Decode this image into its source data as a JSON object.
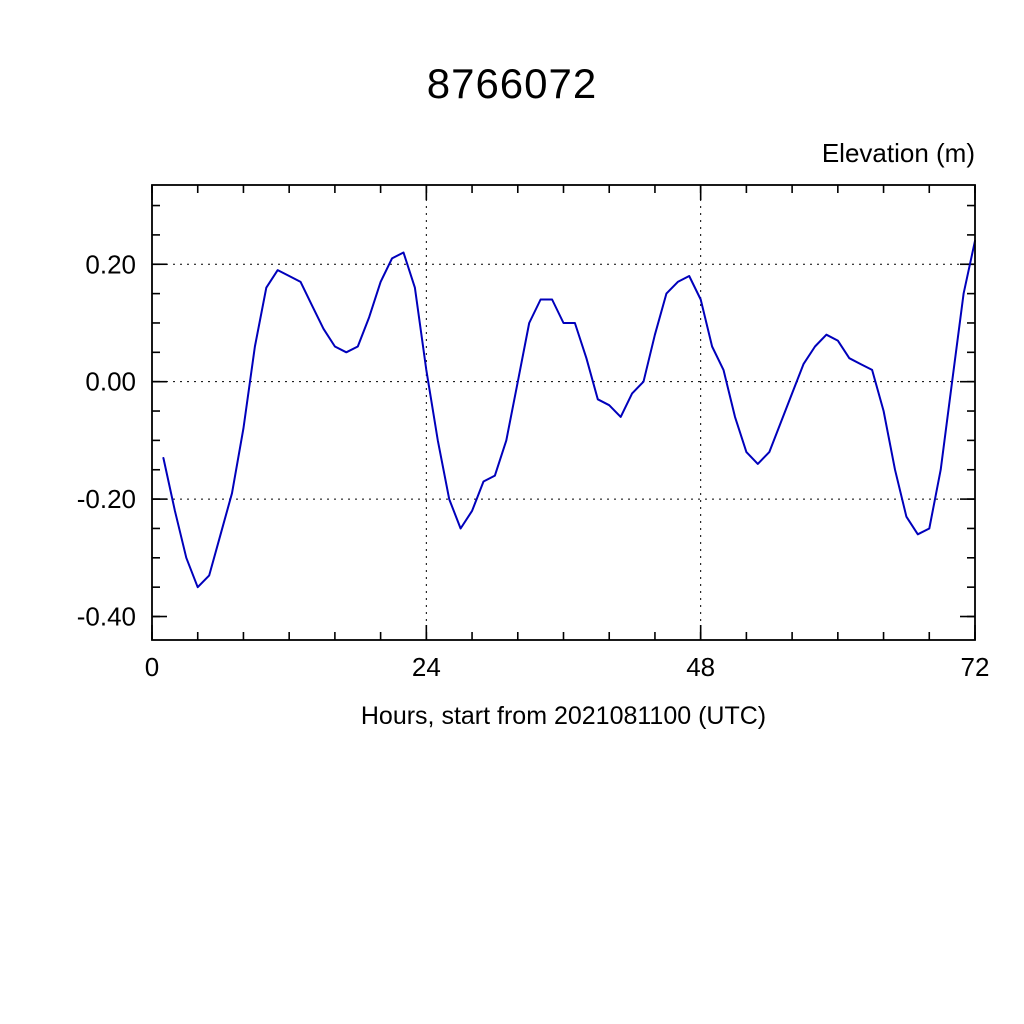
{
  "page": {
    "background": "#ffffff"
  },
  "chart_data": {
    "type": "line",
    "title": "8766072",
    "ylabel": "Elevation (m)",
    "xlabel": "Hours, start from 2021081100 (UTC)",
    "line_color": "#0000bb",
    "grid": "dotted",
    "legend": "none",
    "xlim": [
      0,
      72
    ],
    "ylim": [
      -0.44,
      0.335
    ],
    "x_major_ticks": [
      0,
      24,
      48,
      72
    ],
    "x_tick_labels": [
      "0",
      "24",
      "48",
      "72"
    ],
    "x_minor_step": 4,
    "y_major_ticks": [
      -0.4,
      -0.2,
      0.0,
      0.2
    ],
    "y_tick_labels": [
      "-0.40",
      "-0.20",
      "0.00",
      "0.20"
    ],
    "y_minor_step": 0.05,
    "x_gridlines": [
      24,
      48
    ],
    "y_gridlines": [
      -0.2,
      0.0,
      0.2
    ],
    "x": [
      1,
      2,
      3,
      4,
      5,
      6,
      7,
      8,
      9,
      10,
      11,
      12,
      13,
      14,
      15,
      16,
      17,
      18,
      19,
      20,
      21,
      22,
      23,
      24,
      25,
      26,
      27,
      28,
      29,
      30,
      31,
      32,
      33,
      34,
      35,
      36,
      37,
      38,
      39,
      40,
      41,
      42,
      43,
      44,
      45,
      46,
      47,
      48,
      49,
      50,
      51,
      52,
      53,
      54,
      55,
      56,
      57,
      58,
      59,
      60,
      61,
      62,
      63,
      64,
      65,
      66,
      67,
      68,
      69,
      70,
      71,
      72
    ],
    "y": [
      -0.13,
      -0.22,
      -0.3,
      -0.35,
      -0.33,
      -0.26,
      -0.19,
      -0.08,
      0.06,
      0.16,
      0.19,
      0.18,
      0.17,
      0.13,
      0.09,
      0.06,
      0.05,
      0.06,
      0.11,
      0.17,
      0.21,
      0.22,
      0.16,
      0.02,
      -0.1,
      -0.2,
      -0.25,
      -0.22,
      -0.17,
      -0.16,
      -0.1,
      0.0,
      0.1,
      0.14,
      0.14,
      0.1,
      0.1,
      0.04,
      -0.03,
      -0.04,
      -0.06,
      -0.02,
      0.0,
      0.08,
      0.15,
      0.17,
      0.18,
      0.14,
      0.06,
      0.02,
      -0.06,
      -0.12,
      -0.14,
      -0.12,
      -0.07,
      -0.02,
      0.03,
      0.06,
      0.08,
      0.07,
      0.04,
      0.03,
      0.02,
      -0.05,
      -0.15,
      -0.23,
      -0.26,
      -0.25,
      -0.15,
      0.0,
      0.15,
      0.24
    ]
  }
}
